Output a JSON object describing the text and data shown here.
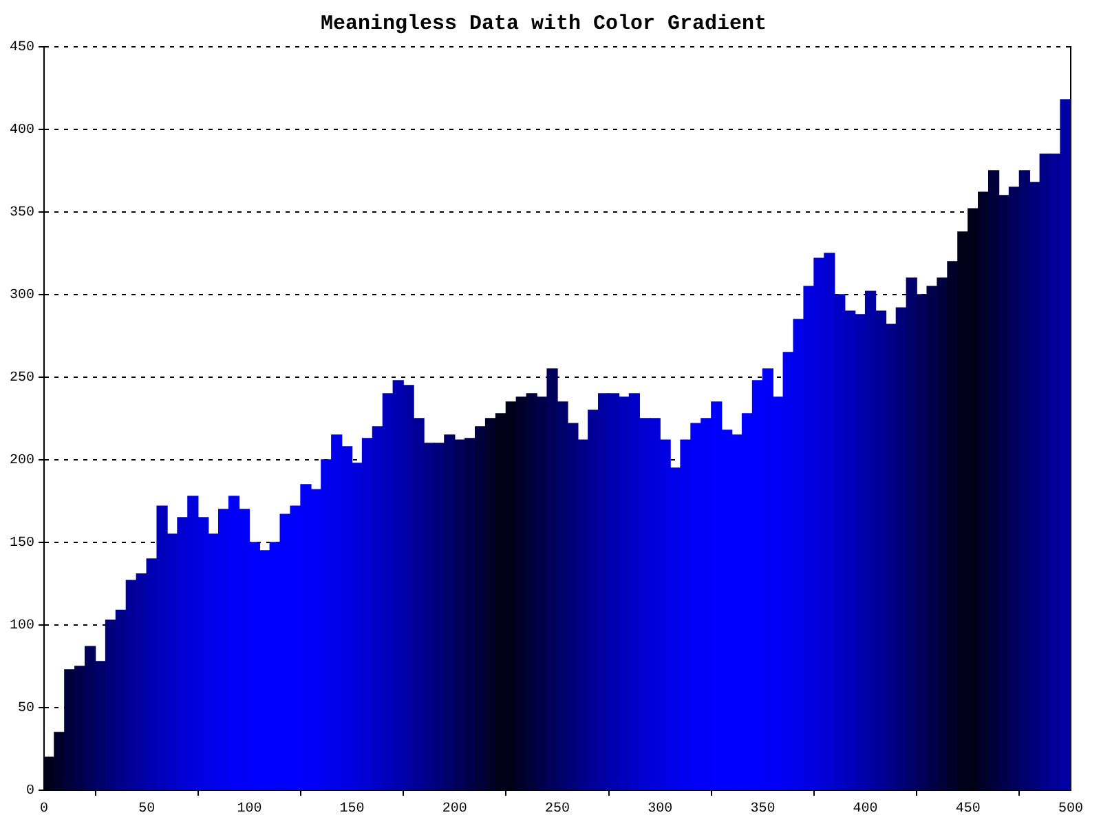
{
  "chart_data": {
    "type": "bar",
    "title": "Meaningless Data with Color Gradient",
    "x": [
      2.5,
      7.5,
      12.5,
      17.5,
      22.5,
      27.5,
      32.5,
      37.5,
      42.5,
      47.5,
      52.5,
      57.5,
      62.5,
      67.5,
      72.5,
      77.5,
      82.5,
      87.5,
      92.5,
      97.5,
      102.5,
      107.5,
      112.5,
      117.5,
      122.5,
      127.5,
      132.5,
      137.5,
      142.5,
      147.5,
      152.5,
      157.5,
      162.5,
      167.5,
      172.5,
      177.5,
      182.5,
      187.5,
      192.5,
      197.5,
      202.5,
      207.5,
      212.5,
      217.5,
      222.5,
      227.5,
      232.5,
      237.5,
      242.5,
      247.5,
      252.5,
      257.5,
      262.5,
      267.5,
      272.5,
      277.5,
      282.5,
      287.5,
      292.5,
      297.5,
      302.5,
      307.5,
      312.5,
      317.5,
      322.5,
      327.5,
      332.5,
      337.5,
      342.5,
      347.5,
      352.5,
      357.5,
      362.5,
      367.5,
      372.5,
      377.5,
      382.5,
      387.5,
      392.5,
      397.5,
      402.5,
      407.5,
      412.5,
      417.5,
      422.5,
      427.5,
      432.5,
      437.5,
      442.5,
      447.5,
      452.5,
      457.5,
      462.5,
      467.5,
      472.5,
      477.5,
      482.5,
      487.5,
      492.5,
      497.5
    ],
    "values": [
      20,
      35,
      73,
      75,
      87,
      78,
      103,
      109,
      127,
      131,
      140,
      172,
      155,
      165,
      178,
      165,
      155,
      170,
      178,
      170,
      150,
      145,
      150,
      167,
      172,
      185,
      182,
      200,
      215,
      208,
      198,
      213,
      220,
      240,
      248,
      245,
      225,
      210,
      210,
      215,
      212,
      213,
      220,
      225,
      228,
      235,
      238,
      240,
      238,
      255,
      235,
      222,
      212,
      230,
      240,
      240,
      238,
      240,
      225,
      225,
      212,
      195,
      212,
      222,
      225,
      235,
      218,
      215,
      228,
      248,
      255,
      238,
      265,
      285,
      305,
      322,
      325,
      300,
      290,
      288,
      302,
      290,
      282,
      292,
      310,
      300,
      305,
      310,
      320,
      338,
      352,
      362,
      375,
      360,
      365,
      375,
      368,
      385,
      385,
      418
    ],
    "colors": [
      "#000018",
      "#000029",
      "#00003a",
      "#00004a",
      "#00005a",
      "#00006a",
      "#000079",
      "#000088",
      "#000096",
      "#0000a3",
      "#0000b0",
      "#0000bc",
      "#0000c7",
      "#0000d1",
      "#0000db",
      "#0000e3",
      "#0000ea",
      "#0000f1",
      "#0000f6",
      "#0000fa",
      "#0000fd",
      "#0000fe",
      "#0000ff",
      "#0000fe",
      "#0000fd",
      "#0000fa",
      "#0000f6",
      "#0000f1",
      "#0000ea",
      "#0000e3",
      "#0000db",
      "#0000d1",
      "#0000c7",
      "#0000bc",
      "#0000b0",
      "#0000a3",
      "#000096",
      "#000088",
      "#000079",
      "#00006a",
      "#00005a",
      "#00004a",
      "#00003a",
      "#000029",
      "#000018",
      "#000018",
      "#000029",
      "#00003a",
      "#00004a",
      "#00005a",
      "#00006a",
      "#000079",
      "#000088",
      "#000096",
      "#0000a3",
      "#0000b0",
      "#0000bc",
      "#0000c7",
      "#0000d1",
      "#0000db",
      "#0000e3",
      "#0000ea",
      "#0000f1",
      "#0000f6",
      "#0000fa",
      "#0000fd",
      "#0000fe",
      "#0000ff",
      "#0000fe",
      "#0000fd",
      "#0000fa",
      "#0000f6",
      "#0000f1",
      "#0000ea",
      "#0000e3",
      "#0000db",
      "#0000d1",
      "#0000c7",
      "#0000bc",
      "#0000b0",
      "#0000a3",
      "#000096",
      "#000088",
      "#000079",
      "#00006a",
      "#00005a",
      "#00004a",
      "#00003a",
      "#000029",
      "#000018",
      "#000018",
      "#000029",
      "#00003a",
      "#00004a",
      "#00005a",
      "#00006a",
      "#000079",
      "#000088",
      "#000096",
      "#0000a3"
    ],
    "xlim": [
      0,
      500
    ],
    "xticks": [
      0,
      50,
      100,
      150,
      200,
      250,
      300,
      350,
      400,
      450,
      500
    ],
    "ylim": [
      0,
      450
    ],
    "yticks": [
      0,
      50,
      100,
      150,
      200,
      250,
      300,
      350,
      400,
      450
    ],
    "grid": "y",
    "legend": false
  }
}
